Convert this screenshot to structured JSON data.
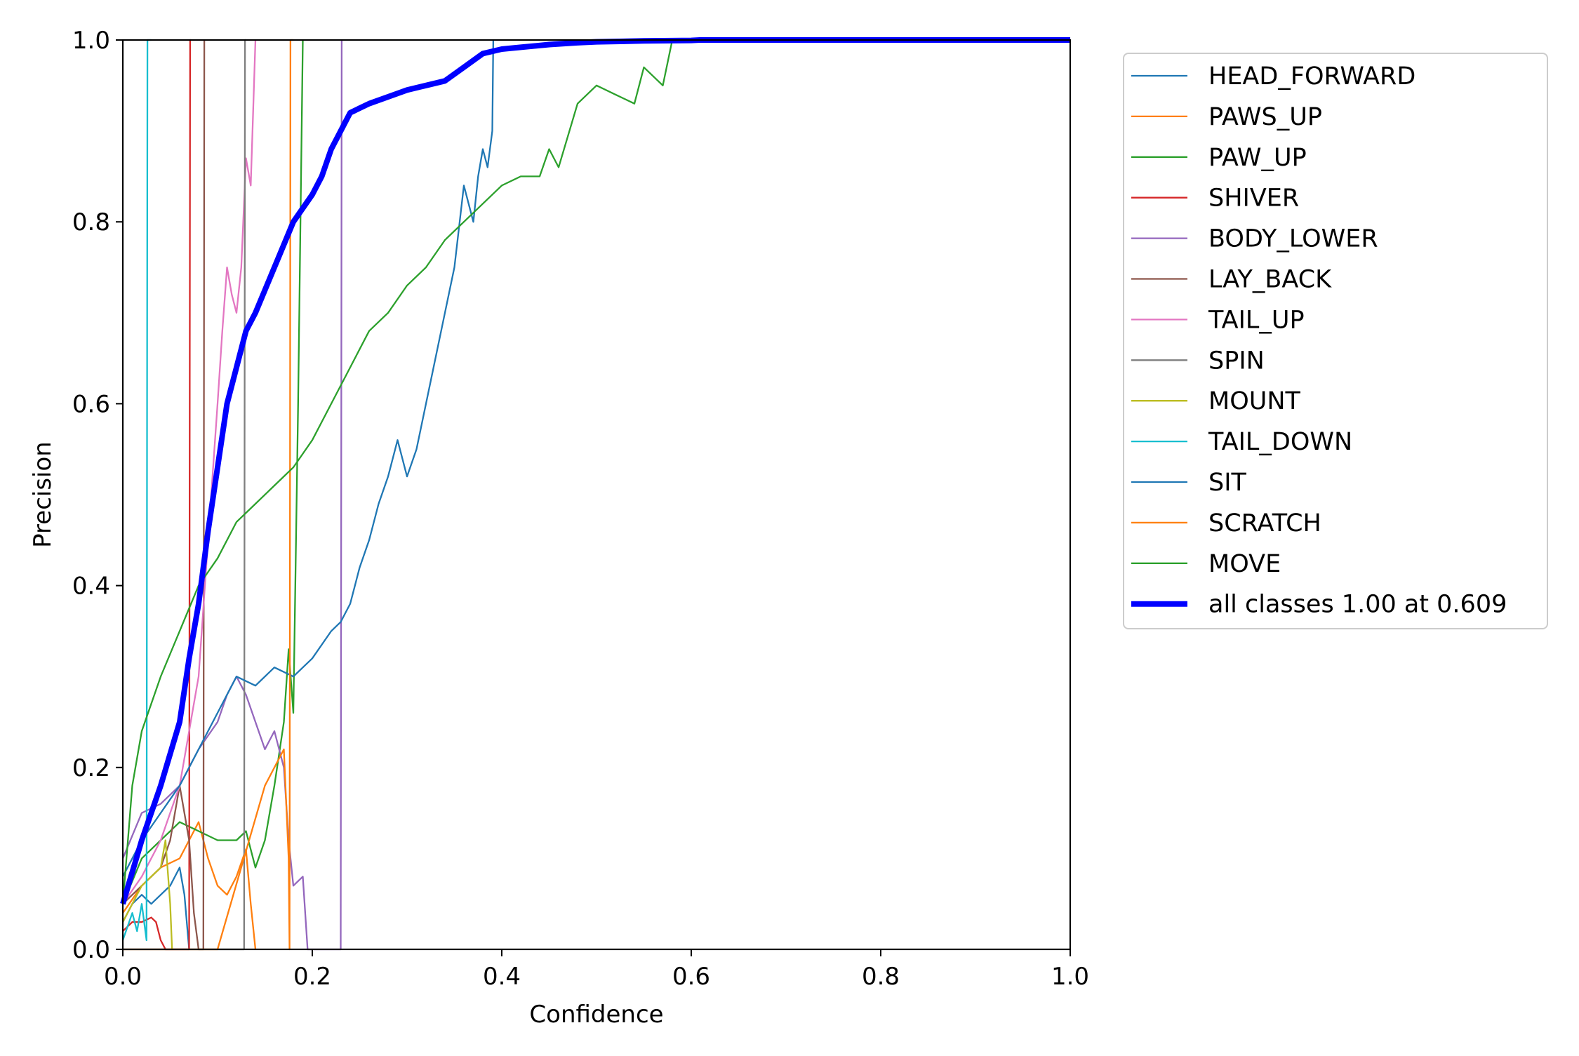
{
  "chart_data": {
    "type": "line",
    "title": "",
    "xlabel": "Confidence",
    "ylabel": "Precision",
    "xlim": [
      0,
      1
    ],
    "ylim": [
      0,
      1
    ],
    "grid": false,
    "legend_placement": "outside-right-top",
    "x_ticks": [
      "0.0",
      "0.2",
      "0.4",
      "0.6",
      "0.8",
      "1.0"
    ],
    "y_ticks": [
      "0.0",
      "0.2",
      "0.4",
      "0.6",
      "0.8",
      "1.0"
    ],
    "series": [
      {
        "name": "HEAD_FORWARD",
        "color": "#1f77b4",
        "x": [
          0.0,
          0.01,
          0.02,
          0.03,
          0.05,
          0.06,
          0.065,
          0.07
        ],
        "y": [
          0.03,
          0.05,
          0.06,
          0.05,
          0.07,
          0.09,
          0.06,
          0.0
        ]
      },
      {
        "name": "PAWS_UP",
        "color": "#ff7f0e",
        "x": [
          0.0,
          0.02,
          0.04,
          0.06,
          0.07,
          0.08,
          0.09,
          0.1,
          0.11,
          0.12,
          0.13,
          0.135,
          0.14
        ],
        "y": [
          0.04,
          0.07,
          0.09,
          0.1,
          0.12,
          0.14,
          0.1,
          0.07,
          0.06,
          0.08,
          0.11,
          0.05,
          0.0
        ]
      },
      {
        "name": "PAW_UP",
        "color": "#2ca02c",
        "x": [
          0.0,
          0.02,
          0.04,
          0.06,
          0.08,
          0.1,
          0.12,
          0.13,
          0.14,
          0.15,
          0.16,
          0.17,
          0.175,
          0.18,
          0.185,
          0.19
        ],
        "y": [
          0.05,
          0.1,
          0.12,
          0.14,
          0.13,
          0.12,
          0.12,
          0.13,
          0.09,
          0.12,
          0.18,
          0.25,
          0.33,
          0.26,
          0.6,
          1.0
        ]
      },
      {
        "name": "SHIVER",
        "color": "#d62728",
        "x": [
          0.0,
          0.01,
          0.02,
          0.03,
          0.035,
          0.04,
          0.045,
          0.07,
          0.071,
          0.072
        ],
        "y": [
          0.02,
          0.03,
          0.03,
          0.035,
          0.03,
          0.01,
          0.0,
          0.0,
          1.0,
          1.0
        ]
      },
      {
        "name": "BODY_LOWER",
        "color": "#9467bd",
        "x": [
          0.0,
          0.02,
          0.04,
          0.06,
          0.08,
          0.1,
          0.11,
          0.12,
          0.13,
          0.14,
          0.15,
          0.16,
          0.17,
          0.175,
          0.18,
          0.19,
          0.195,
          0.23,
          0.231
        ],
        "y": [
          0.1,
          0.15,
          0.16,
          0.18,
          0.22,
          0.25,
          0.28,
          0.3,
          0.28,
          0.25,
          0.22,
          0.24,
          0.2,
          0.12,
          0.07,
          0.08,
          0.0,
          0.0,
          1.0
        ]
      },
      {
        "name": "LAY_BACK",
        "color": "#8c564b",
        "x": [
          0.0,
          0.02,
          0.04,
          0.05,
          0.06,
          0.07,
          0.075,
          0.08,
          0.085,
          0.086
        ],
        "y": [
          0.05,
          0.07,
          0.09,
          0.12,
          0.18,
          0.12,
          0.04,
          0.0,
          0.0,
          1.0
        ]
      },
      {
        "name": "TAIL_UP",
        "color": "#e377c2",
        "x": [
          0.0,
          0.02,
          0.04,
          0.06,
          0.08,
          0.09,
          0.1,
          0.105,
          0.11,
          0.115,
          0.12,
          0.125,
          0.13,
          0.135,
          0.14
        ],
        "y": [
          0.05,
          0.08,
          0.12,
          0.18,
          0.3,
          0.45,
          0.6,
          0.68,
          0.75,
          0.72,
          0.7,
          0.75,
          0.87,
          0.84,
          1.0
        ]
      },
      {
        "name": "SPIN",
        "color": "#7f7f7f",
        "x": [
          0.0,
          0.1,
          0.128,
          0.129,
          0.13
        ],
        "y": [
          0.0,
          0.0,
          0.0,
          1.0,
          1.0
        ]
      },
      {
        "name": "MOUNT",
        "color": "#bcbd22",
        "x": [
          0.0,
          0.01,
          0.02,
          0.03,
          0.04,
          0.045,
          0.05,
          0.052
        ],
        "y": [
          0.03,
          0.05,
          0.07,
          0.08,
          0.09,
          0.12,
          0.05,
          0.0
        ]
      },
      {
        "name": "TAIL_DOWN",
        "color": "#17becf",
        "x": [
          0.0,
          0.01,
          0.015,
          0.02,
          0.025,
          0.026,
          0.027,
          0.03
        ],
        "y": [
          0.01,
          0.04,
          0.02,
          0.05,
          0.01,
          1.0,
          1.0,
          1.0
        ]
      },
      {
        "name": "SIT",
        "color": "#1f77b4",
        "x": [
          0.0,
          0.02,
          0.04,
          0.06,
          0.08,
          0.1,
          0.12,
          0.14,
          0.16,
          0.18,
          0.2,
          0.22,
          0.23,
          0.24,
          0.25,
          0.26,
          0.27,
          0.28,
          0.29,
          0.3,
          0.31,
          0.32,
          0.33,
          0.34,
          0.35,
          0.36,
          0.37,
          0.375,
          0.38,
          0.385,
          0.39,
          0.391
        ],
        "y": [
          0.08,
          0.12,
          0.15,
          0.18,
          0.22,
          0.26,
          0.3,
          0.29,
          0.31,
          0.3,
          0.32,
          0.35,
          0.36,
          0.38,
          0.42,
          0.45,
          0.49,
          0.52,
          0.56,
          0.52,
          0.55,
          0.6,
          0.65,
          0.7,
          0.75,
          0.84,
          0.8,
          0.85,
          0.88,
          0.86,
          0.9,
          1.0
        ]
      },
      {
        "name": "SCRATCH",
        "color": "#ff7f0e",
        "x": [
          0.0,
          0.05,
          0.1,
          0.15,
          0.17,
          0.175,
          0.176,
          0.177,
          0.18
        ],
        "y": [
          0.0,
          0.0,
          0.0,
          0.18,
          0.22,
          0.1,
          0.0,
          1.0,
          1.0
        ]
      },
      {
        "name": "MOVE",
        "color": "#2ca02c",
        "x": [
          0.0,
          0.01,
          0.02,
          0.04,
          0.06,
          0.08,
          0.1,
          0.12,
          0.14,
          0.16,
          0.18,
          0.2,
          0.22,
          0.24,
          0.26,
          0.28,
          0.3,
          0.32,
          0.34,
          0.36,
          0.38,
          0.4,
          0.42,
          0.44,
          0.45,
          0.46,
          0.48,
          0.5,
          0.52,
          0.54,
          0.55,
          0.57,
          0.58,
          0.59,
          0.6,
          0.65,
          1.0
        ],
        "y": [
          0.05,
          0.18,
          0.24,
          0.3,
          0.35,
          0.4,
          0.43,
          0.47,
          0.49,
          0.51,
          0.53,
          0.56,
          0.6,
          0.64,
          0.68,
          0.7,
          0.73,
          0.75,
          0.78,
          0.8,
          0.82,
          0.84,
          0.85,
          0.85,
          0.88,
          0.86,
          0.93,
          0.95,
          0.94,
          0.93,
          0.97,
          0.95,
          1.0,
          1.0,
          1.0,
          1.0,
          1.0
        ]
      },
      {
        "name": "all classes 1.00 at 0.609",
        "color": "#0000ff",
        "bold": true,
        "x": [
          0.0,
          0.02,
          0.04,
          0.06,
          0.07,
          0.08,
          0.09,
          0.1,
          0.11,
          0.12,
          0.13,
          0.14,
          0.16,
          0.18,
          0.2,
          0.21,
          0.22,
          0.23,
          0.24,
          0.26,
          0.3,
          0.32,
          0.34,
          0.36,
          0.38,
          0.4,
          0.42,
          0.45,
          0.48,
          0.5,
          0.55,
          0.6,
          0.609,
          0.7,
          0.8,
          0.9,
          1.0
        ],
        "y": [
          0.05,
          0.12,
          0.18,
          0.25,
          0.32,
          0.38,
          0.46,
          0.53,
          0.6,
          0.64,
          0.68,
          0.7,
          0.75,
          0.8,
          0.83,
          0.85,
          0.88,
          0.9,
          0.92,
          0.93,
          0.945,
          0.95,
          0.955,
          0.97,
          0.985,
          0.99,
          0.992,
          0.995,
          0.997,
          0.998,
          0.999,
          0.9995,
          1.0,
          1.0,
          1.0,
          1.0,
          1.0
        ]
      }
    ]
  }
}
